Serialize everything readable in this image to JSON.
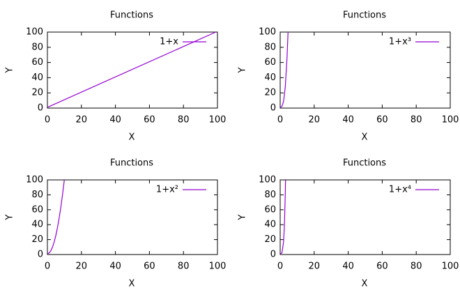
{
  "chart_data": [
    {
      "type": "line",
      "title": "Functions",
      "xlabel": "X",
      "ylabel": "Y",
      "x": [
        0,
        99
      ],
      "series": [
        {
          "name": "1+x",
          "color": "#9400d3",
          "values": [
            1,
            100
          ]
        }
      ],
      "xlim": [
        0,
        100
      ],
      "ylim": [
        0,
        100
      ],
      "xticks": [
        0,
        20,
        40,
        60,
        80,
        100
      ],
      "yticks": [
        0,
        20,
        40,
        60,
        80,
        100
      ],
      "legend": "top-right"
    },
    {
      "type": "line",
      "title": "Functions",
      "xlabel": "X",
      "ylabel": "Y",
      "x": [
        0,
        1,
        2,
        3,
        4,
        4.63
      ],
      "series": [
        {
          "name": "1+x³",
          "color": "#9400d3",
          "values": [
            1,
            2,
            9,
            28,
            65,
            100
          ]
        }
      ],
      "xlim": [
        0,
        100
      ],
      "ylim": [
        0,
        100
      ],
      "xticks": [
        0,
        20,
        40,
        60,
        80,
        100
      ],
      "yticks": [
        0,
        20,
        40,
        60,
        80,
        100
      ],
      "legend": "top-right"
    },
    {
      "type": "line",
      "title": "Functions",
      "xlabel": "X",
      "ylabel": "Y",
      "x": [
        0,
        1,
        2,
        3,
        4,
        5,
        6,
        7,
        8,
        9,
        9.95
      ],
      "series": [
        {
          "name": "1+x²",
          "color": "#9400d3",
          "values": [
            1,
            2,
            5,
            10,
            17,
            26,
            37,
            50,
            65,
            82,
            100
          ]
        }
      ],
      "xlim": [
        0,
        100
      ],
      "ylim": [
        0,
        100
      ],
      "xticks": [
        0,
        20,
        40,
        60,
        80,
        100
      ],
      "yticks": [
        0,
        20,
        40,
        60,
        80,
        100
      ],
      "legend": "top-right"
    },
    {
      "type": "line",
      "title": "Functions",
      "xlabel": "X",
      "ylabel": "Y",
      "x": [
        0,
        1,
        2,
        2.5,
        3,
        3.15
      ],
      "series": [
        {
          "name": "1+x⁴",
          "color": "#9400d3",
          "values": [
            1,
            2,
            17,
            40,
            82,
            99.5
          ]
        }
      ],
      "xlim": [
        0,
        100
      ],
      "ylim": [
        0,
        100
      ],
      "xticks": [
        0,
        20,
        40,
        60,
        80,
        100
      ],
      "yticks": [
        0,
        20,
        40,
        60,
        80,
        100
      ],
      "legend": "top-right"
    }
  ]
}
